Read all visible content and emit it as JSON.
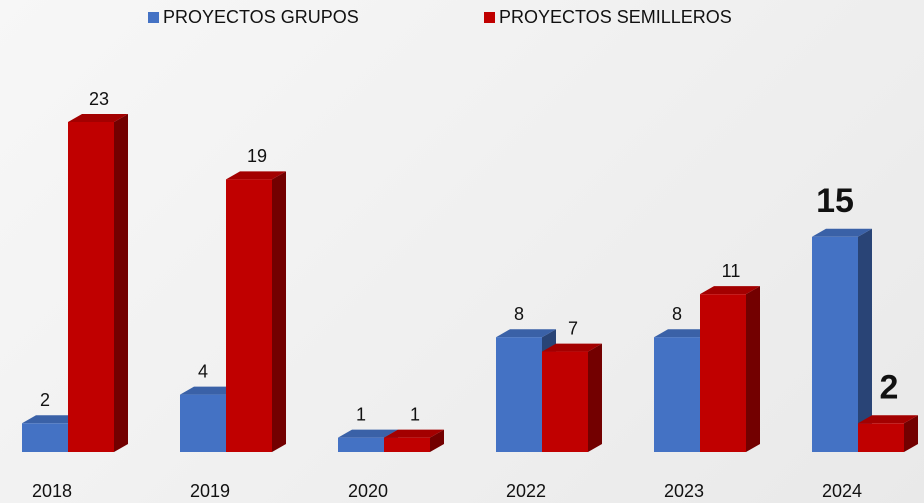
{
  "chart_data": {
    "type": "bar3d",
    "categories": [
      "2018",
      "2019",
      "2020",
      "2022",
      "2023",
      "2024"
    ],
    "series": [
      {
        "name": "PROYECTOS GRUPOS",
        "color": "#4472c4",
        "values": [
          2,
          4,
          1,
          8,
          8,
          15
        ]
      },
      {
        "name": "PROYECTOS SEMILLEROS",
        "color": "#c00000",
        "values": [
          23,
          19,
          1,
          7,
          11,
          2
        ]
      }
    ],
    "legend": "top"
  }
}
